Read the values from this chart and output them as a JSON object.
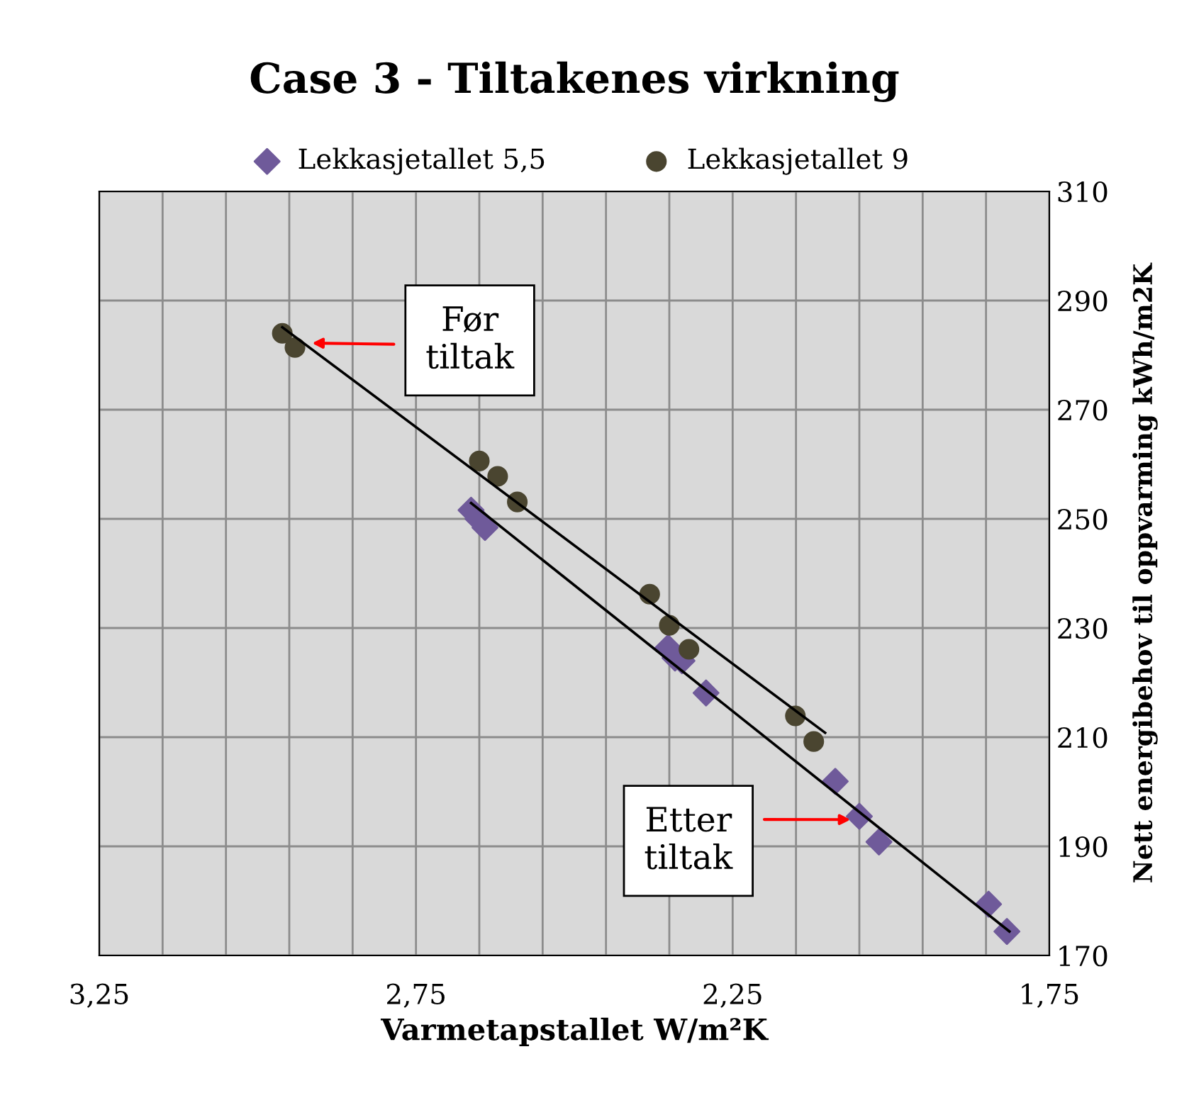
{
  "chart_data": {
    "type": "scatter",
    "title": "Case 3 - Tiltakenes virkning",
    "xlabel": "Varmetapstallet W/m²K",
    "ylabel": "Nett energibehov til oppvarming kWh/m2K",
    "series": [
      {
        "name": "Lekkasjetallet 5,5",
        "color": "#6f5a9a",
        "marker": "diamond",
        "x": [
          2.663,
          2.652,
          2.641,
          2.352,
          2.341,
          2.33,
          2.292,
          2.088,
          2.05,
          2.019,
          1.846,
          1.817
        ],
        "values": [
          251.6,
          250.0,
          248.4,
          226.4,
          224.5,
          224.0,
          218.1,
          201.9,
          195.5,
          190.8,
          179.4,
          174.4
        ]
      },
      {
        "name": "Lekkasjetallet 9",
        "color": "#4a4530",
        "marker": "circle",
        "x": [
          2.961,
          2.941,
          2.65,
          2.621,
          2.59,
          2.381,
          2.35,
          2.319,
          2.151,
          2.122
        ],
        "values": [
          284.0,
          281.4,
          260.6,
          257.8,
          253.1,
          236.2,
          230.5,
          226.1,
          213.9,
          209.2
        ]
      },
      {
        "type": "line",
        "color": "#000000",
        "marker": "none",
        "x": [
          2.663,
          1.813
        ],
        "values": [
          252.9,
          174.4
        ]
      },
      {
        "type": "line",
        "color": "#000000",
        "marker": "none",
        "x": [
          2.961,
          2.104
        ],
        "values": [
          285.1,
          210.8
        ]
      }
    ],
    "xlim": [
      3.25,
      1.75
    ],
    "xticks": [
      {
        "value": 3.25,
        "label": "3,25"
      },
      {
        "value": 3.15,
        "label": null
      },
      {
        "value": 3.05,
        "label": null
      },
      {
        "value": 2.95,
        "label": null
      },
      {
        "value": 2.85,
        "label": null
      },
      {
        "value": 2.75,
        "label": "2,75"
      },
      {
        "value": 2.65,
        "label": null
      },
      {
        "value": 2.55,
        "label": null
      },
      {
        "value": 2.45,
        "label": null
      },
      {
        "value": 2.35,
        "label": null
      },
      {
        "value": 2.25,
        "label": "2,25"
      },
      {
        "value": 2.15,
        "label": null
      },
      {
        "value": 2.05,
        "label": null
      },
      {
        "value": 1.95,
        "label": null
      },
      {
        "value": 1.85,
        "label": null
      },
      {
        "value": 1.75,
        "label": "1,75"
      }
    ],
    "ylim": [
      170,
      310
    ],
    "yticks": [
      170,
      190,
      210,
      230,
      250,
      270,
      290,
      310
    ],
    "grid": true,
    "legend": "top",
    "annotations": [
      {
        "text": "Før\ntiltak",
        "x": 2.914,
        "y": 282.2
      },
      {
        "text": "Etter\ntiltak",
        "x": 2.064,
        "y": 194.9
      }
    ]
  }
}
